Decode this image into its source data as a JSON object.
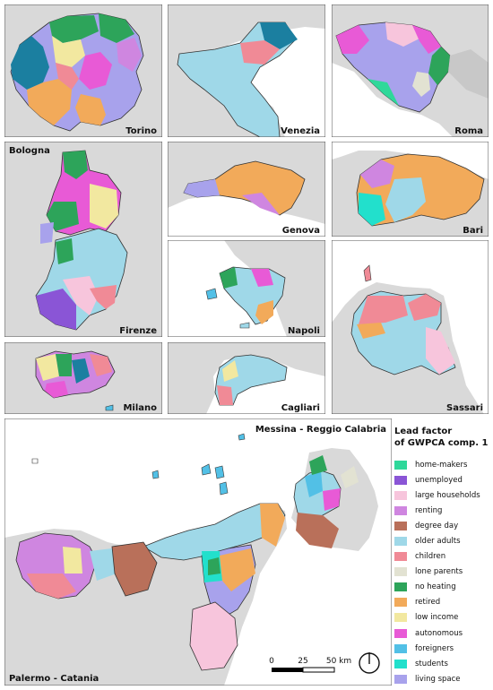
{
  "panels": {
    "torino": "Torino",
    "venezia": "Venezia",
    "roma": "Roma",
    "bologna": "Bologna",
    "genova": "Genova",
    "bari": "Bari",
    "firenze": "Firenze",
    "napoli": "Napoli",
    "sassari": "Sassari",
    "milano": "Milano",
    "cagliari": "Cagliari",
    "messina_reggio": "Messina  -  Reggio Calabria",
    "palermo_catania": "Palermo  -  Catania"
  },
  "legend": {
    "title_line1": "Lead factor",
    "title_line2": "of GWPCA comp. 1",
    "items": [
      {
        "label": "home-makers",
        "color": "#2fd89a"
      },
      {
        "label": "unemployed",
        "color": "#8a55d6"
      },
      {
        "label": "large households",
        "color": "#f7c5dc"
      },
      {
        "label": "renting",
        "color": "#cf86e0"
      },
      {
        "label": "degree day",
        "color": "#b9705a"
      },
      {
        "label": "older adults",
        "color": "#9fd8e8"
      },
      {
        "label": "children",
        "color": "#f08a96"
      },
      {
        "label": "lone parents",
        "color": "#e2e2d2"
      },
      {
        "label": "no heating",
        "color": "#2da45a"
      },
      {
        "label": "retired",
        "color": "#f2aa5a"
      },
      {
        "label": "low income",
        "color": "#f2e8a0"
      },
      {
        "label": "autonomous",
        "color": "#e85ad6"
      },
      {
        "label": "foreigners",
        "color": "#52c0e6"
      },
      {
        "label": "students",
        "color": "#22e0cc"
      },
      {
        "label": "living space",
        "color": "#a8a2ec"
      }
    ]
  },
  "scalebar": {
    "tick0": "0",
    "tick1": "25",
    "tick2": "50 km"
  },
  "colors": {
    "sea": "#ffffff",
    "land": "#d9d9d9",
    "frame": "#555555",
    "outline": "#333333"
  }
}
